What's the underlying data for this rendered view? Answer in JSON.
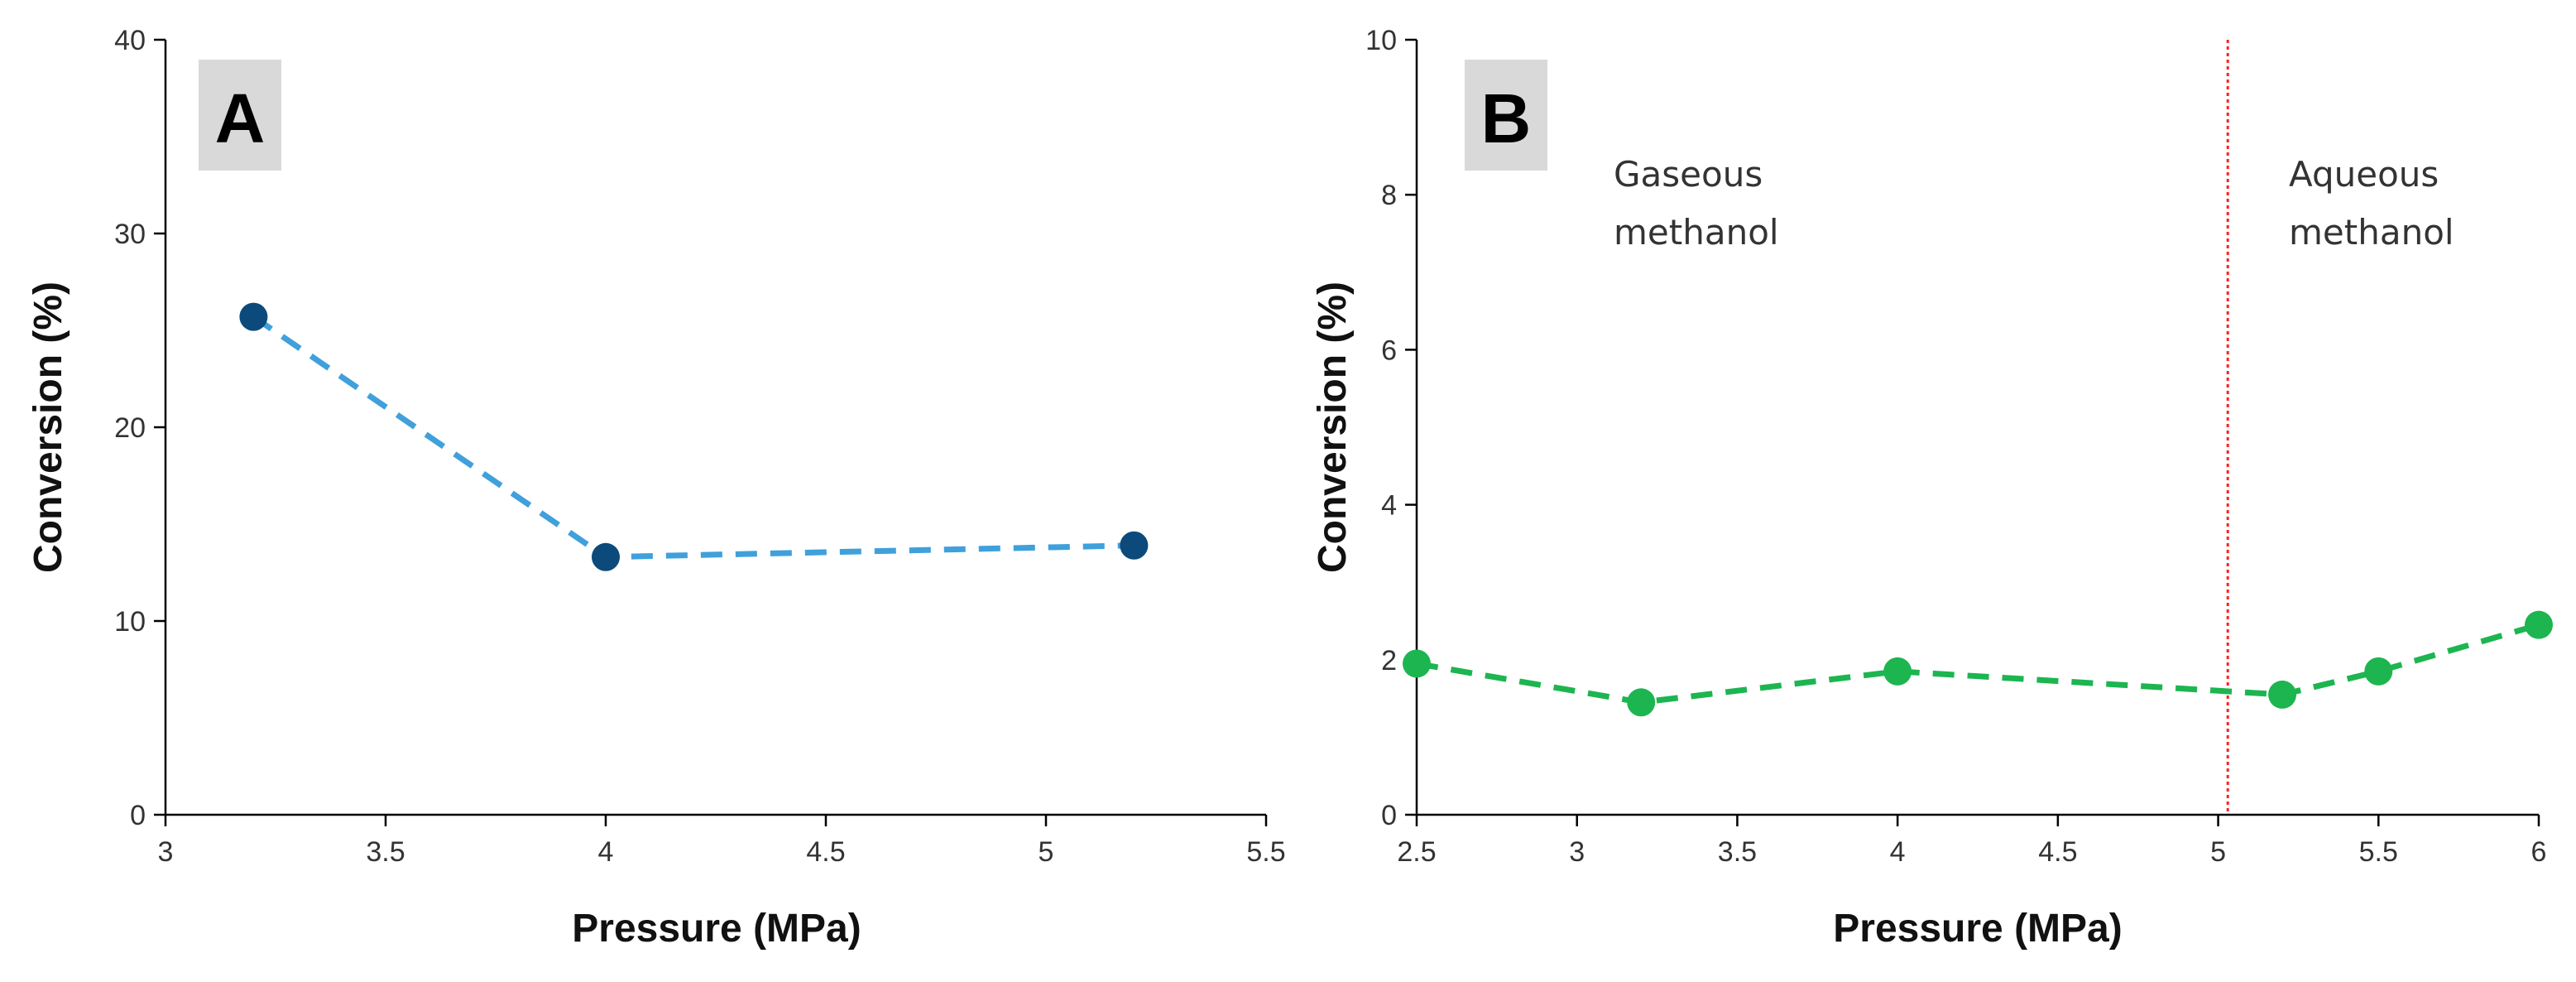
{
  "chart_data": [
    {
      "type": "line",
      "panel_label": "A",
      "title": "",
      "xlabel": "Pressure (MPa)",
      "ylabel": "Conversion (%)",
      "xlim": [
        3,
        5.5
      ],
      "ylim": [
        0,
        40
      ],
      "xticks": [
        "3",
        "3.5",
        "4",
        "4.5",
        "5",
        "5.5"
      ],
      "yticks": [
        "0",
        "10",
        "20",
        "30",
        "40"
      ],
      "grid": false,
      "series": [
        {
          "name": "Conversion",
          "x": [
            3.2,
            4.0,
            5.2
          ],
          "y": [
            25.7,
            13.3,
            13.9
          ],
          "marker_color": "#0b4a7a",
          "line_color": "#3fa0dc",
          "line_style": "dashed"
        }
      ]
    },
    {
      "type": "line",
      "panel_label": "B",
      "title": "",
      "xlabel": "Pressure (MPa)",
      "ylabel": "Conversion (%)",
      "xlim": [
        2.5,
        6
      ],
      "ylim": [
        0,
        10
      ],
      "xticks": [
        "2.5",
        "3",
        "3.5",
        "4",
        "4.5",
        "5",
        "5.5",
        "6"
      ],
      "yticks": [
        "0",
        "2",
        "4",
        "6",
        "8",
        "10"
      ],
      "grid": false,
      "vertical_line": {
        "x": 5.03,
        "color": "#ff2020",
        "style": "dotted"
      },
      "annotations": [
        {
          "lines": [
            "Gaseous",
            "methanol"
          ],
          "side": "left"
        },
        {
          "lines": [
            "Aqueous",
            "methanol"
          ],
          "side": "right"
        }
      ],
      "series": [
        {
          "name": "Conversion",
          "x": [
            2.5,
            3.2,
            4.0,
            5.2,
            5.5,
            6.0
          ],
          "y": [
            1.95,
            1.45,
            1.85,
            1.55,
            1.85,
            2.45
          ],
          "marker_color": "#1db550",
          "line_color": "#1db550",
          "line_style": "dashed"
        }
      ]
    }
  ]
}
